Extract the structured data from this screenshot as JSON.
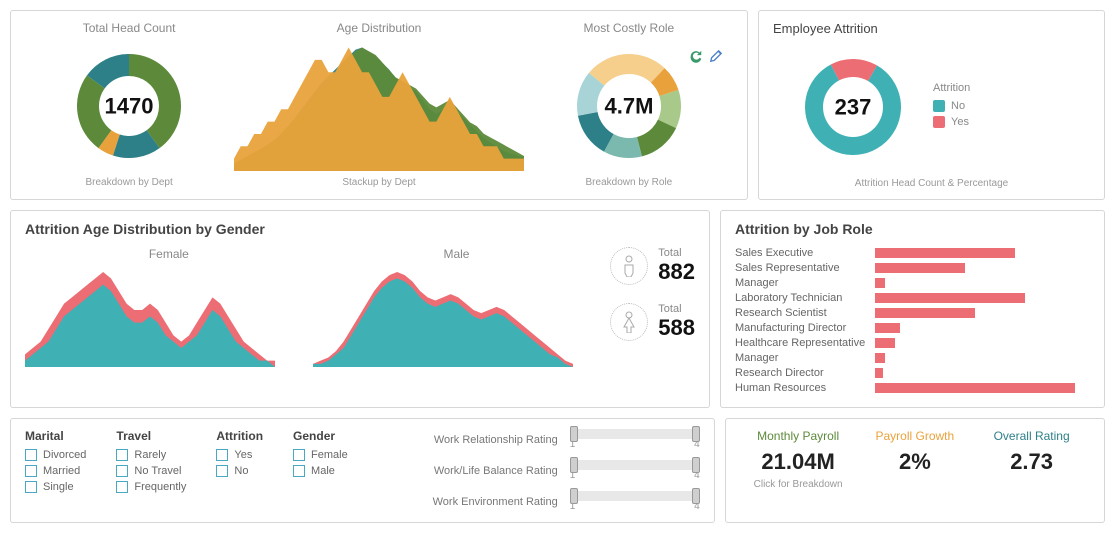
{
  "top": {
    "headcount": {
      "title": "Total Head Count",
      "value": "1470",
      "caption": "Breakdown by Dept",
      "segments": [
        {
          "color": "#5c8a3a",
          "pct": 40
        },
        {
          "color": "#2e8088",
          "pct": 15
        },
        {
          "color": "#e9a23b",
          "pct": 5
        },
        {
          "color": "#5c8a3a",
          "pct": 25
        },
        {
          "color": "#2e8088",
          "pct": 15
        }
      ]
    },
    "age_dist": {
      "title": "Age Distribution",
      "caption": "Stackup by Dept",
      "colors": [
        "#e9a23b",
        "#5c8a3a",
        "#2e8088"
      ],
      "series": [
        [
          1,
          2,
          2,
          3,
          3,
          4,
          4,
          5,
          5,
          6,
          7,
          8,
          9,
          9,
          8,
          8,
          9,
          10,
          9,
          8,
          8,
          7,
          6,
          6,
          7,
          8,
          7,
          6,
          5,
          4,
          4,
          5,
          6,
          5,
          4,
          3,
          3,
          2,
          2,
          2,
          1,
          1,
          1,
          1
        ],
        [
          2,
          3,
          4,
          5,
          6,
          7,
          8,
          10,
          12,
          14,
          16,
          18,
          20,
          22,
          24,
          26,
          28,
          30,
          32,
          33,
          32,
          31,
          29,
          27,
          25,
          24,
          23,
          22,
          20,
          18,
          17,
          18,
          19,
          17,
          15,
          13,
          12,
          10,
          9,
          8,
          7,
          6,
          5,
          4
        ],
        [
          3,
          4,
          5,
          7,
          9,
          12,
          14,
          17,
          20,
          24,
          28,
          32,
          36,
          40,
          43,
          46,
          49,
          52,
          55,
          56,
          54,
          52,
          49,
          46,
          42,
          40,
          38,
          36,
          32,
          28,
          26,
          28,
          30,
          27,
          24,
          21,
          18,
          15,
          13,
          11,
          9,
          8,
          7,
          6
        ]
      ]
    },
    "costly_role": {
      "title": "Most Costly Role",
      "value": "4.7M",
      "caption": "Breakdown by Role",
      "segments": [
        {
          "color": "#f5cf8b",
          "pct": 12
        },
        {
          "color": "#e9a23b",
          "pct": 8
        },
        {
          "color": "#a8c98a",
          "pct": 12
        },
        {
          "color": "#5c8a3a",
          "pct": 14
        },
        {
          "color": "#7bb8ad",
          "pct": 12
        },
        {
          "color": "#2e8088",
          "pct": 14
        },
        {
          "color": "#a8d4d8",
          "pct": 14
        },
        {
          "color": "#f5cf8b",
          "pct": 14
        }
      ]
    },
    "attrition": {
      "title": "Employee Attrition",
      "value": "237",
      "caption": "Attrition Head Count & Percentage",
      "legend_title": "Attrition",
      "legend": [
        {
          "label": "No",
          "color": "#3fb1b5"
        },
        {
          "label": "Yes",
          "color": "#ec6d74"
        }
      ],
      "segments": [
        {
          "color": "#3fb1b5",
          "pct": 84
        },
        {
          "color": "#ec6d74",
          "pct": 16
        }
      ]
    }
  },
  "gender": {
    "title": "Attrition Age Distribution by Gender",
    "female_label": "Female",
    "male_label": "Male",
    "colors": {
      "back": "#ec6d74",
      "front": "#3fb1b5"
    },
    "female": {
      "back": [
        2,
        3,
        4,
        6,
        8,
        10,
        11,
        12,
        13,
        14,
        15,
        14,
        12,
        10,
        9,
        9,
        10,
        9,
        7,
        5,
        4,
        5,
        7,
        9,
        11,
        10,
        8,
        6,
        4,
        3,
        2,
        1,
        1
      ],
      "front": [
        1,
        2,
        3,
        4,
        6,
        8,
        9,
        10,
        11,
        12,
        13,
        12,
        10,
        8,
        7,
        7,
        8,
        7,
        5,
        4,
        3,
        4,
        5,
        7,
        9,
        8,
        6,
        4,
        3,
        2,
        1,
        1,
        0
      ]
    },
    "male": {
      "back": [
        1,
        2,
        3,
        5,
        8,
        12,
        16,
        20,
        24,
        27,
        29,
        30,
        29,
        27,
        24,
        22,
        21,
        22,
        23,
        22,
        20,
        18,
        17,
        18,
        19,
        18,
        16,
        14,
        12,
        10,
        8,
        6,
        4,
        2,
        1
      ],
      "front": [
        1,
        1,
        2,
        4,
        6,
        10,
        14,
        18,
        22,
        25,
        27,
        28,
        27,
        25,
        22,
        20,
        19,
        20,
        21,
        20,
        18,
        16,
        15,
        16,
        17,
        16,
        14,
        12,
        10,
        8,
        6,
        4,
        3,
        1,
        0
      ]
    },
    "totals": {
      "male": {
        "label": "Total",
        "value": "882"
      },
      "female": {
        "label": "Total",
        "value": "588"
      }
    }
  },
  "jobrole": {
    "title": "Attrition by Job Role",
    "color": "#ec6d74",
    "max": 200,
    "rows": [
      {
        "label": "Sales Executive",
        "val": 140
      },
      {
        "label": "Sales Representative",
        "val": 90
      },
      {
        "label": "Manager",
        "val": 10
      },
      {
        "label": "Laboratory Technician",
        "val": 150
      },
      {
        "label": "Research Scientist",
        "val": 100
      },
      {
        "label": "Manufacturing Director",
        "val": 25
      },
      {
        "label": "Healthcare Representative",
        "val": 20
      },
      {
        "label": "Manager",
        "val": 10
      },
      {
        "label": "Research Director",
        "val": 8
      },
      {
        "label": "Human Resources",
        "val": 200
      }
    ]
  },
  "filters": {
    "marital": {
      "title": "Marital",
      "opts": [
        "Divorced",
        "Married",
        "Single"
      ]
    },
    "travel": {
      "title": "Travel",
      "opts": [
        "Rarely",
        "No Travel",
        "Frequently"
      ]
    },
    "attrition": {
      "title": "Attrition",
      "opts": [
        "Yes",
        "No"
      ]
    },
    "gender": {
      "title": "Gender",
      "opts": [
        "Female",
        "Male"
      ]
    },
    "sliders": [
      {
        "label": "Work Relationship Rating",
        "min": "1",
        "max": "4"
      },
      {
        "label": "Work/Life Balance Rating",
        "min": "1",
        "max": "4"
      },
      {
        "label": "Work Environment Rating",
        "min": "1",
        "max": "4"
      }
    ]
  },
  "kpi": {
    "payroll": {
      "label": "Monthly Payroll",
      "value": "21.04M",
      "sub": "Click for Breakdown",
      "color": "#5c8a3a"
    },
    "growth": {
      "label": "Payroll Growth",
      "value": "2%",
      "color": "#e9a23b"
    },
    "rating": {
      "label": "Overall Rating",
      "value": "2.73",
      "color": "#2e8088"
    }
  }
}
